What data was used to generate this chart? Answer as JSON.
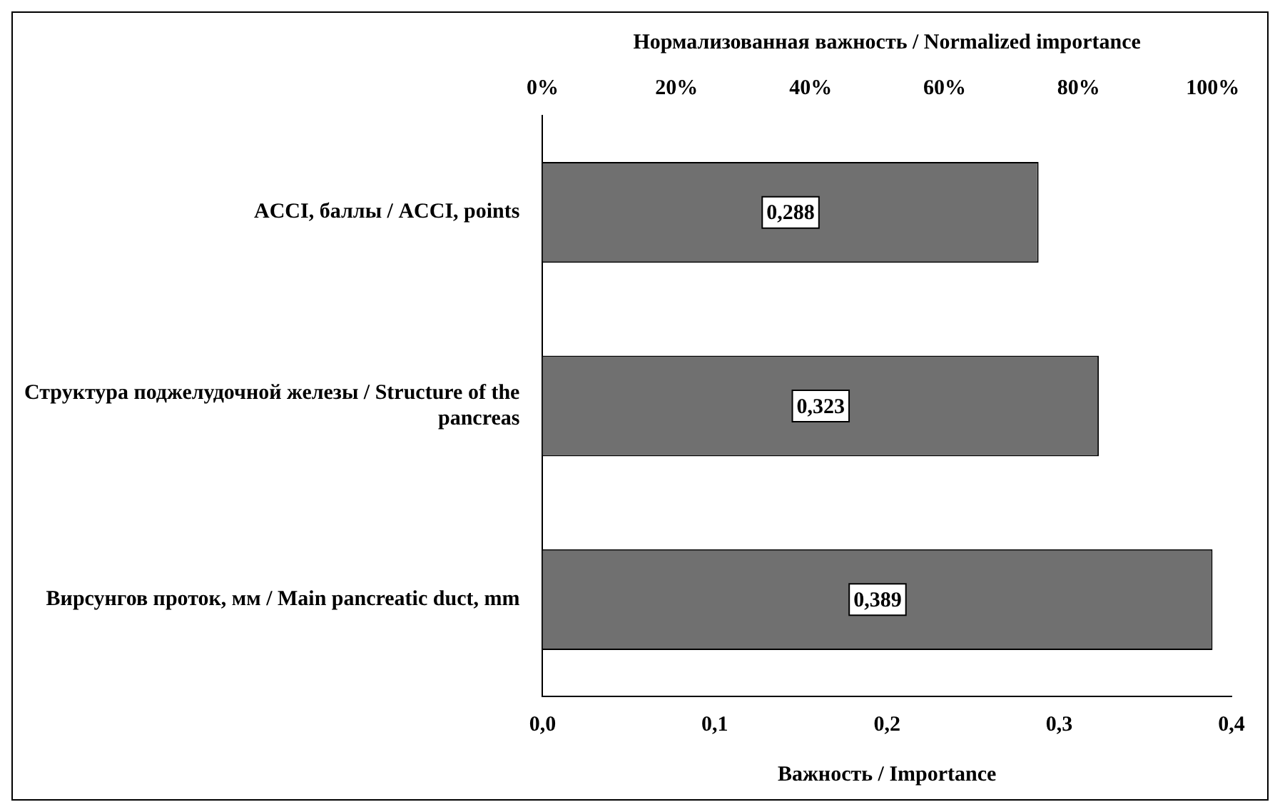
{
  "chart_data": {
    "type": "bar",
    "orientation": "horizontal",
    "categories": [
      "ACCI, баллы / ACCI, points",
      "Структура поджелудочной железы / Structure of the pancreas",
      "Вирсунгов проток, мм / Main pancreatic duct, mm"
    ],
    "values": [
      0.288,
      0.323,
      0.389
    ],
    "color": "#707070",
    "value_labels": [
      "0,288",
      "0,323",
      "0,389"
    ],
    "xlabel": "Важность / Importance",
    "x2label": "Нормализованная важность / Normalized importance",
    "xlim": [
      0,
      0.4
    ],
    "xticks": [
      {
        "value": 0,
        "label": "0,0"
      },
      {
        "value": 0.1,
        "label": "0,1"
      },
      {
        "value": 0.2,
        "label": "0,2"
      },
      {
        "value": 0.3,
        "label": "0,3"
      },
      {
        "value": 0.4,
        "label": "0,4"
      }
    ],
    "x2lim": [
      0,
      102.8
    ],
    "x2ticks": [
      {
        "value": 0,
        "label": "0%"
      },
      {
        "value": 20,
        "label": "20%"
      },
      {
        "value": 40,
        "label": "40%"
      },
      {
        "value": 60,
        "label": "60%"
      },
      {
        "value": 80,
        "label": "80%"
      },
      {
        "value": 100,
        "label": "100%"
      }
    ],
    "grid": false,
    "legend": false
  }
}
